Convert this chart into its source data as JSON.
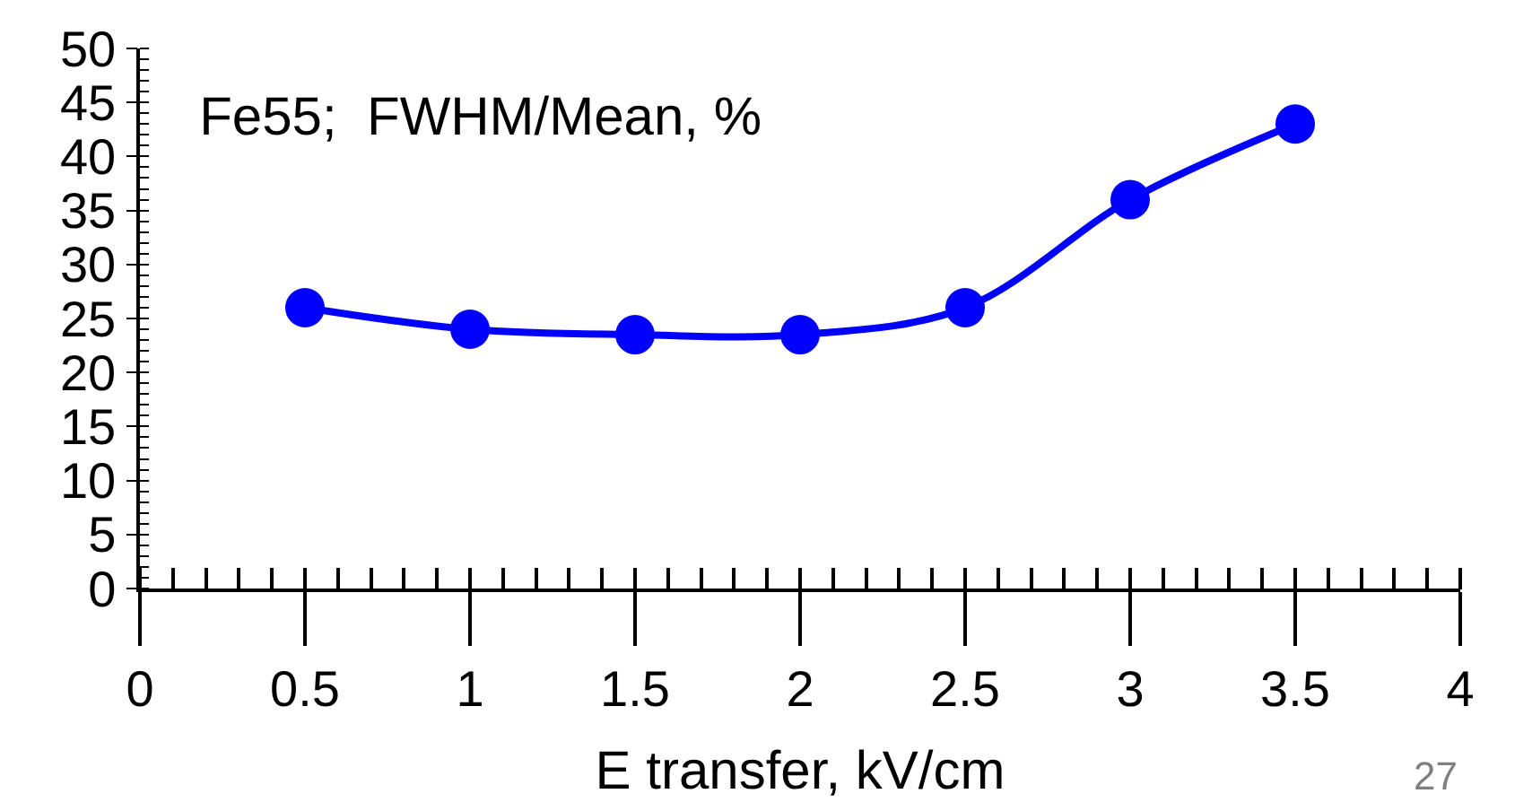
{
  "chart_data": {
    "type": "line",
    "title": "Fe55;  FWHM/Mean, %",
    "xlabel": "E transfer, kV/cm",
    "annotations": [
      "27"
    ],
    "x": [
      0.5,
      1,
      1.5,
      2,
      2.5,
      3,
      3.5
    ],
    "series": [
      {
        "color": "#0000ff",
        "values": [
          26,
          24,
          23.5,
          23.5,
          26,
          36,
          43
        ]
      }
    ],
    "xlim": [
      0,
      4
    ],
    "xticks": [
      0,
      0.5,
      1,
      1.5,
      2,
      2.5,
      3,
      3.5,
      4
    ],
    "ylim": [
      0,
      50
    ],
    "yticks": [
      0,
      5,
      10,
      15,
      20,
      25,
      30,
      35,
      40,
      45,
      50
    ],
    "marker": "circle",
    "line_style": "solid"
  }
}
